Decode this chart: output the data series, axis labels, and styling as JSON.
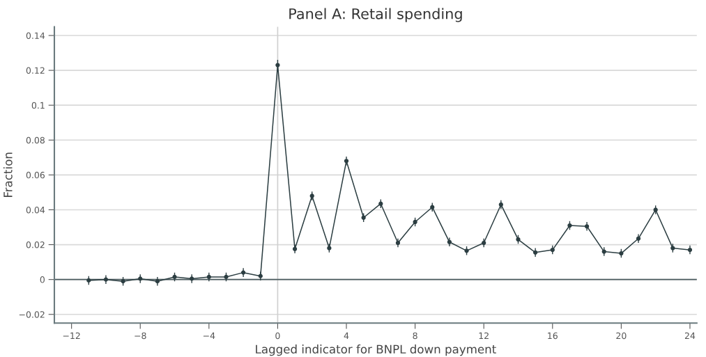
{
  "chart_data": {
    "type": "line",
    "title": "Panel A: Retail spending",
    "xlabel": "Lagged indicator for BNPL down payment",
    "ylabel": "Fraction",
    "x": [
      -11,
      -10,
      -9,
      -8,
      -7,
      -6,
      -5,
      -4,
      -3,
      -2,
      -1,
      0,
      1,
      2,
      3,
      4,
      5,
      6,
      7,
      8,
      9,
      10,
      11,
      12,
      13,
      14,
      15,
      16,
      17,
      18,
      19,
      20,
      21,
      22,
      23,
      24
    ],
    "series": [
      {
        "color": "#2c3e42",
        "values": [
          -0.0005,
          0,
          -0.001,
          0.0005,
          -0.001,
          0.0015,
          0.0005,
          0.0015,
          0.0015,
          0.004,
          0.002,
          0.123,
          0.0175,
          0.048,
          0.018,
          0.068,
          0.0355,
          0.0435,
          0.021,
          0.033,
          0.0415,
          0.0215,
          0.0165,
          0.021,
          0.043,
          0.023,
          0.0155,
          0.017,
          0.031,
          0.0305,
          0.016,
          0.015,
          0.0235,
          0.04,
          0.018,
          0.017
        ],
        "errors": [
          0.0025,
          0.0025,
          0.0025,
          0.0025,
          0.0025,
          0.0025,
          0.0025,
          0.0025,
          0.0025,
          0.0025,
          0.0025,
          0.003,
          0.0025,
          0.0025,
          0.0025,
          0.0025,
          0.0025,
          0.0025,
          0.0025,
          0.0025,
          0.0025,
          0.0025,
          0.0025,
          0.0025,
          0.0025,
          0.0025,
          0.0025,
          0.0025,
          0.0025,
          0.0025,
          0.0025,
          0.0025,
          0.0025,
          0.0025,
          0.0025,
          0.0025
        ]
      }
    ],
    "marker": "circle",
    "line_style": "solid",
    "xlim": [
      -13,
      24.4
    ],
    "xticks": [
      {
        "value": -12,
        "label": "−12"
      },
      {
        "value": -8,
        "label": "−8"
      },
      {
        "value": -4,
        "label": "−4"
      },
      0,
      4,
      8,
      12,
      16,
      20,
      24
    ],
    "ylim": [
      -0.025,
      0.145
    ],
    "yticks": [
      {
        "value": -0.02,
        "label": "−0.02"
      },
      0,
      0.02,
      0.04,
      0.06,
      0.08,
      0.1,
      0.12,
      0.14
    ],
    "grid": "y",
    "ref_lines": [
      {
        "axis": "x",
        "value": 0,
        "color": "#d0d0d0",
        "line_style": "solid"
      },
      {
        "axis": "y",
        "value": 0,
        "color": "#4a5a5e",
        "line_style": "solid"
      }
    ]
  }
}
